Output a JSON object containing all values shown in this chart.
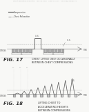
{
  "bg_color": "#f8f8f6",
  "page_header": "Patent Application Publication    May 19, 2016    Sheet 11 of 13    US 2016/0136462 A1",
  "fig17": {
    "label": "FIG. 17",
    "caption": "CHEST LIFTED ONLY OCCASIONALLY\nBETWEEN CHEST COMPRESSIONS",
    "legend_line1": "Compression",
    "legend_line2": "Chest Relaxation"
  },
  "fig18": {
    "label": "FIG. 18",
    "caption": "LIFTING CHEST TO\nACCELERATING HEIGHTS\nBETWEEN COMPRESSIONS"
  }
}
